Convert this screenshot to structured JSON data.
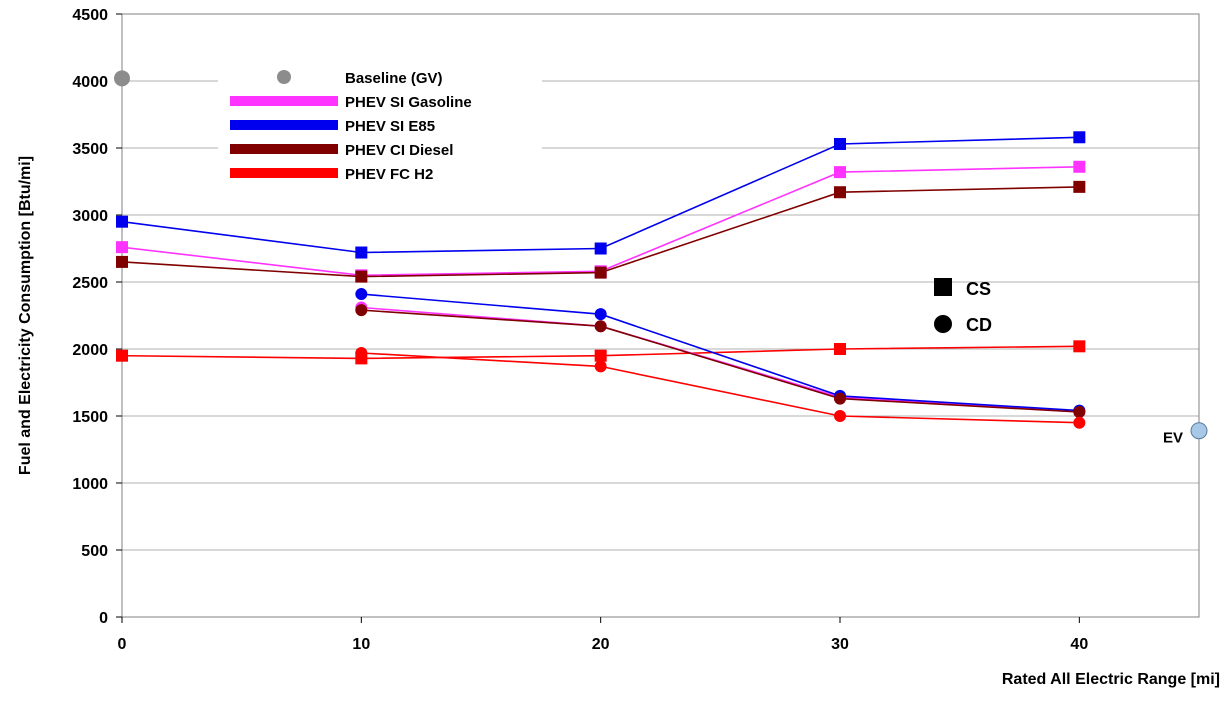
{
  "chart_data": {
    "type": "line",
    "xlabel": "Rated All Electric Range [mi]",
    "ylabel": "Fuel and Electricity Consumption [Btu/mi]",
    "xlim": [
      0,
      45
    ],
    "ylim": [
      0,
      4500
    ],
    "x_ticks": [
      0,
      10,
      20,
      30,
      40
    ],
    "y_ticks": [
      0,
      500,
      1000,
      1500,
      2000,
      2500,
      3000,
      3500,
      4000,
      4500
    ],
    "grid": "horizontal",
    "legend": {
      "placement": "top-left",
      "entries": [
        {
          "name": "Baseline (GV)",
          "color": "#8c8c8c",
          "marker": "circle"
        },
        {
          "name": "PHEV SI Gasoline",
          "color": "#ff33ff",
          "marker": "line"
        },
        {
          "name": "PHEV SI E85",
          "color": "#0000ee",
          "marker": "line"
        },
        {
          "name": "PHEV CI Diesel",
          "color": "#800000",
          "marker": "line"
        },
        {
          "name": "PHEV FC H2",
          "color": "#ff0000",
          "marker": "line"
        }
      ]
    },
    "marker_legend": [
      {
        "label": "CS",
        "shape": "square"
      },
      {
        "label": "CD",
        "shape": "circle"
      }
    ],
    "series": [
      {
        "name": "PHEV SI Gasoline",
        "mode": "CS",
        "color": "#ff33ff",
        "x": [
          0,
          10,
          20,
          30,
          40
        ],
        "y": [
          2760,
          2550,
          2580,
          3320,
          3360
        ]
      },
      {
        "name": "PHEV SI E85",
        "mode": "CS",
        "color": "#0000ee",
        "x": [
          0,
          10,
          20,
          30,
          40
        ],
        "y": [
          2950,
          2720,
          2750,
          3530,
          3580
        ]
      },
      {
        "name": "PHEV CI Diesel",
        "mode": "CS",
        "color": "#800000",
        "x": [
          0,
          10,
          20,
          30,
          40
        ],
        "y": [
          2650,
          2540,
          2570,
          3170,
          3210
        ]
      },
      {
        "name": "PHEV FC H2",
        "mode": "CS",
        "color": "#ff0000",
        "x": [
          0,
          10,
          20,
          30,
          40
        ],
        "y": [
          1950,
          1930,
          1950,
          2000,
          2020
        ]
      },
      {
        "name": "PHEV SI Gasoline",
        "mode": "CD",
        "color": "#ff33ff",
        "x": [
          10,
          20,
          30,
          40
        ],
        "y": [
          2310,
          2170,
          1640,
          1530
        ]
      },
      {
        "name": "PHEV SI E85",
        "mode": "CD",
        "color": "#0000ee",
        "x": [
          10,
          20,
          30,
          40
        ],
        "y": [
          2410,
          2260,
          1650,
          1540
        ]
      },
      {
        "name": "PHEV CI Diesel",
        "mode": "CD",
        "color": "#800000",
        "x": [
          10,
          20,
          30,
          40
        ],
        "y": [
          2290,
          2170,
          1630,
          1530
        ]
      },
      {
        "name": "PHEV FC H2",
        "mode": "CD",
        "color": "#ff0000",
        "x": [
          10,
          20,
          30,
          40
        ],
        "y": [
          1970,
          1870,
          1500,
          1450
        ]
      }
    ],
    "points": [
      {
        "name": "Baseline (GV)",
        "x": 0,
        "y": 4020,
        "color": "#8c8c8c",
        "marker": "circle"
      },
      {
        "name": "EV",
        "x": 45,
        "y": 1390,
        "color": "#a8c8e8",
        "marker": "circle"
      }
    ],
    "annotations": [
      {
        "text": "EV"
      }
    ]
  }
}
